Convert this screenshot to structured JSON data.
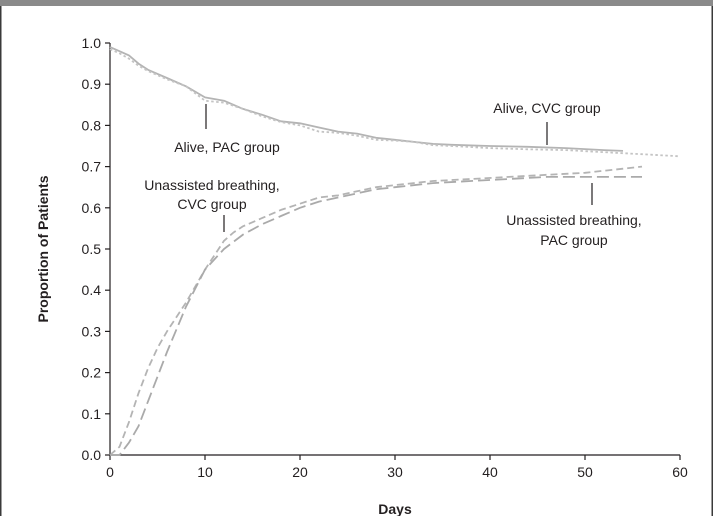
{
  "chart_data": {
    "type": "line",
    "xlabel": "Days",
    "ylabel": "Proportion of Patients",
    "xlim": [
      0,
      60
    ],
    "ylim": [
      0,
      1.0
    ],
    "x_ticks": [
      "0",
      "10",
      "20",
      "30",
      "40",
      "50",
      "60"
    ],
    "y_ticks": [
      "0.0",
      "0.1",
      "0.2",
      "0.3",
      "0.4",
      "0.5",
      "0.6",
      "0.7",
      "0.8",
      "0.9",
      "1.0"
    ],
    "grid": false,
    "series": [
      {
        "name": "Alive, PAC group",
        "color": "#b4b4b4",
        "style": "solid",
        "x": [
          0,
          1,
          2,
          3,
          4,
          6,
          8,
          10,
          12,
          14,
          16,
          18,
          20,
          22,
          24,
          26,
          28,
          30,
          32,
          34,
          36,
          40,
          44,
          48,
          52,
          54
        ],
        "y": [
          0.99,
          0.98,
          0.97,
          0.95,
          0.935,
          0.915,
          0.895,
          0.868,
          0.86,
          0.84,
          0.826,
          0.81,
          0.805,
          0.795,
          0.785,
          0.78,
          0.77,
          0.765,
          0.76,
          0.755,
          0.753,
          0.75,
          0.748,
          0.745,
          0.74,
          0.738
        ]
      },
      {
        "name": "Alive, CVC group",
        "color": "#c4c4c4",
        "style": "dotted",
        "x": [
          0,
          1,
          2,
          3,
          4,
          6,
          8,
          10,
          12,
          14,
          16,
          18,
          20,
          22,
          24,
          26,
          28,
          30,
          32,
          34,
          36,
          40,
          44,
          48,
          52,
          56,
          60
        ],
        "y": [
          0.985,
          0.975,
          0.962,
          0.945,
          0.932,
          0.912,
          0.895,
          0.86,
          0.855,
          0.84,
          0.822,
          0.808,
          0.8,
          0.785,
          0.782,
          0.775,
          0.765,
          0.763,
          0.76,
          0.752,
          0.75,
          0.745,
          0.742,
          0.74,
          0.735,
          0.73,
          0.725
        ]
      },
      {
        "name": "Unassisted breathing, CVC group",
        "color": "#b4b4b4",
        "style": "dashed",
        "x": [
          0,
          1,
          2,
          3,
          4,
          5,
          6,
          8,
          10,
          12,
          13,
          14,
          16,
          18,
          20,
          22,
          24,
          26,
          28,
          30,
          34,
          38,
          42,
          46,
          50,
          54,
          56
        ],
        "y": [
          0.0,
          0.02,
          0.08,
          0.15,
          0.21,
          0.26,
          0.3,
          0.37,
          0.45,
          0.52,
          0.54,
          0.555,
          0.575,
          0.595,
          0.61,
          0.625,
          0.63,
          0.64,
          0.65,
          0.655,
          0.665,
          0.67,
          0.675,
          0.68,
          0.685,
          0.695,
          0.7
        ]
      },
      {
        "name": "Unassisted breathing, PAC group",
        "color": "#aaaaaa",
        "style": "longdash",
        "x": [
          0,
          1,
          2,
          3,
          4,
          6,
          8,
          10,
          12,
          14,
          16,
          18,
          20,
          22,
          24,
          26,
          28,
          30,
          34,
          38,
          42,
          46,
          50,
          54,
          56
        ],
        "y": [
          0.0,
          0.0,
          0.03,
          0.07,
          0.13,
          0.25,
          0.36,
          0.45,
          0.5,
          0.535,
          0.56,
          0.58,
          0.6,
          0.615,
          0.625,
          0.635,
          0.645,
          0.65,
          0.66,
          0.665,
          0.67,
          0.675,
          0.675,
          0.675,
          0.675
        ]
      }
    ],
    "annotations": [
      {
        "line1": "Alive, PAC group",
        "line2": ""
      },
      {
        "line1": "Alive, CVC group",
        "line2": ""
      },
      {
        "line1": "Unassisted breathing,",
        "line2": "CVC group"
      },
      {
        "line1": "Unassisted breathing,",
        "line2": "PAC group"
      }
    ]
  }
}
